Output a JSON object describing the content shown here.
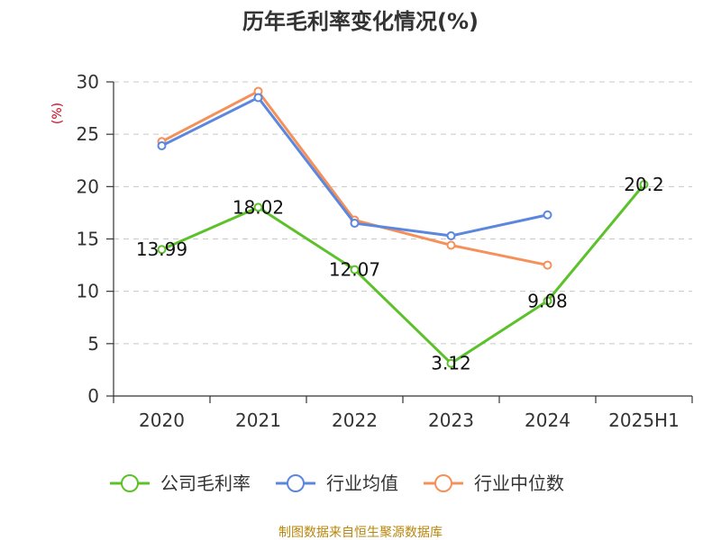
{
  "chart_data": {
    "type": "line",
    "title": "历年毛利率变化情况(%)",
    "unit_label": "(%)",
    "categories": [
      "2020",
      "2021",
      "2022",
      "2023",
      "2024",
      "2025H1"
    ],
    "ylim": [
      0,
      30
    ],
    "yticks": [
      0,
      5,
      10,
      15,
      20,
      25,
      30
    ],
    "grid": "horizontal-dashed",
    "legend_position": "bottom",
    "series": [
      {
        "name": "公司毛利率",
        "color": "#5cc12b",
        "values": [
          13.99,
          18.02,
          12.07,
          3.12,
          9.08,
          20.2
        ],
        "labels": [
          "13.99",
          "18.02",
          "12.07",
          "3.12",
          "9.08",
          "20.2"
        ]
      },
      {
        "name": "行业均值",
        "color": "#5b87de",
        "values": [
          23.9,
          28.5,
          16.5,
          15.3,
          17.3,
          null
        ]
      },
      {
        "name": "行业中位数",
        "color": "#f5905a",
        "values": [
          24.3,
          29.1,
          16.8,
          14.4,
          12.5,
          null
        ]
      }
    ]
  },
  "source": "制图数据来自恒生聚源数据库"
}
